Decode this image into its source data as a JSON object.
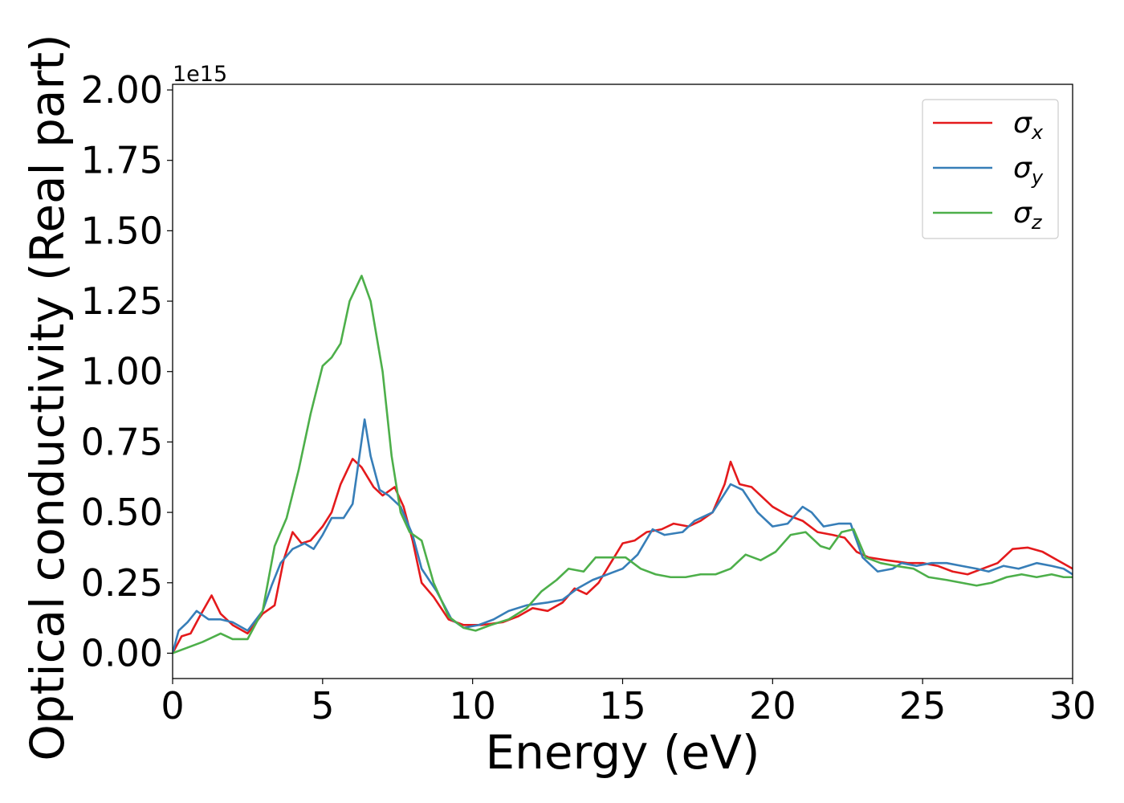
{
  "chart_data": {
    "type": "line",
    "xlabel": "Energy (eV)",
    "ylabel": "Optical conductivity (Real part)",
    "y_offset_label": "1e15",
    "xlim": [
      0,
      30
    ],
    "ylim": [
      -0.09,
      2.02
    ],
    "x_ticks": [
      0,
      5,
      10,
      15,
      20,
      25,
      30
    ],
    "x_tick_labels": [
      "0",
      "5",
      "10",
      "15",
      "20",
      "25",
      "30"
    ],
    "y_ticks": [
      0,
      0.25,
      0.5,
      0.75,
      1.0,
      1.25,
      1.5,
      1.75,
      2.0
    ],
    "y_tick_labels": [
      "0.00",
      "0.25",
      "0.50",
      "0.75",
      "1.00",
      "1.25",
      "1.50",
      "1.75",
      "2.00"
    ],
    "grid": false,
    "legend_position": "top-right",
    "series": [
      {
        "name": "σx",
        "symbol": "σ",
        "subscript": "x",
        "color": "#e41a1c",
        "points": [
          [
            0,
            0
          ],
          [
            0.3,
            0.06
          ],
          [
            0.6,
            0.07
          ],
          [
            0.9,
            0.13
          ],
          [
            1.3,
            0.205
          ],
          [
            1.6,
            0.14
          ],
          [
            2.0,
            0.1
          ],
          [
            2.5,
            0.07
          ],
          [
            3.0,
            0.14
          ],
          [
            3.4,
            0.17
          ],
          [
            3.7,
            0.33
          ],
          [
            4.0,
            0.43
          ],
          [
            4.3,
            0.39
          ],
          [
            4.6,
            0.4
          ],
          [
            5.0,
            0.45
          ],
          [
            5.3,
            0.5
          ],
          [
            5.6,
            0.6
          ],
          [
            6.0,
            0.69
          ],
          [
            6.3,
            0.66
          ],
          [
            6.7,
            0.59
          ],
          [
            7.0,
            0.56
          ],
          [
            7.4,
            0.59
          ],
          [
            7.7,
            0.52
          ],
          [
            8.0,
            0.4
          ],
          [
            8.3,
            0.25
          ],
          [
            8.7,
            0.2
          ],
          [
            9.2,
            0.12
          ],
          [
            9.7,
            0.1
          ],
          [
            10.3,
            0.1
          ],
          [
            11.0,
            0.11
          ],
          [
            11.5,
            0.13
          ],
          [
            12.0,
            0.16
          ],
          [
            12.5,
            0.15
          ],
          [
            13.0,
            0.18
          ],
          [
            13.4,
            0.23
          ],
          [
            13.8,
            0.21
          ],
          [
            14.2,
            0.25
          ],
          [
            14.6,
            0.32
          ],
          [
            15.0,
            0.39
          ],
          [
            15.4,
            0.4
          ],
          [
            15.8,
            0.43
          ],
          [
            16.3,
            0.44
          ],
          [
            16.7,
            0.46
          ],
          [
            17.2,
            0.45
          ],
          [
            17.6,
            0.47
          ],
          [
            18.0,
            0.5
          ],
          [
            18.4,
            0.6
          ],
          [
            18.6,
            0.68
          ],
          [
            18.9,
            0.6
          ],
          [
            19.3,
            0.59
          ],
          [
            19.7,
            0.55
          ],
          [
            20.0,
            0.52
          ],
          [
            20.5,
            0.49
          ],
          [
            21.0,
            0.47
          ],
          [
            21.5,
            0.43
          ],
          [
            22.0,
            0.42
          ],
          [
            22.4,
            0.41
          ],
          [
            22.8,
            0.36
          ],
          [
            23.2,
            0.34
          ],
          [
            23.8,
            0.33
          ],
          [
            24.5,
            0.32
          ],
          [
            25.0,
            0.32
          ],
          [
            25.5,
            0.31
          ],
          [
            26.0,
            0.29
          ],
          [
            26.5,
            0.28
          ],
          [
            27.0,
            0.3
          ],
          [
            27.5,
            0.32
          ],
          [
            28.0,
            0.37
          ],
          [
            28.5,
            0.375
          ],
          [
            29.0,
            0.36
          ],
          [
            29.5,
            0.33
          ],
          [
            30.0,
            0.3
          ]
        ]
      },
      {
        "name": "σy",
        "symbol": "σ",
        "subscript": "y",
        "color": "#377eb8",
        "points": [
          [
            0,
            0
          ],
          [
            0.2,
            0.08
          ],
          [
            0.5,
            0.11
          ],
          [
            0.8,
            0.15
          ],
          [
            1.2,
            0.12
          ],
          [
            1.6,
            0.12
          ],
          [
            2.0,
            0.11
          ],
          [
            2.5,
            0.08
          ],
          [
            3.0,
            0.15
          ],
          [
            3.3,
            0.24
          ],
          [
            3.6,
            0.32
          ],
          [
            4.0,
            0.37
          ],
          [
            4.4,
            0.39
          ],
          [
            4.7,
            0.37
          ],
          [
            5.0,
            0.42
          ],
          [
            5.3,
            0.48
          ],
          [
            5.7,
            0.48
          ],
          [
            6.0,
            0.53
          ],
          [
            6.2,
            0.68
          ],
          [
            6.4,
            0.83
          ],
          [
            6.6,
            0.7
          ],
          [
            6.9,
            0.58
          ],
          [
            7.2,
            0.56
          ],
          [
            7.6,
            0.52
          ],
          [
            8.0,
            0.42
          ],
          [
            8.3,
            0.3
          ],
          [
            8.8,
            0.22
          ],
          [
            9.3,
            0.12
          ],
          [
            9.7,
            0.09
          ],
          [
            10.2,
            0.1
          ],
          [
            10.7,
            0.12
          ],
          [
            11.2,
            0.15
          ],
          [
            11.8,
            0.17
          ],
          [
            12.5,
            0.18
          ],
          [
            13.0,
            0.19
          ],
          [
            13.5,
            0.23
          ],
          [
            14.0,
            0.26
          ],
          [
            14.5,
            0.28
          ],
          [
            15.0,
            0.3
          ],
          [
            15.5,
            0.35
          ],
          [
            16.0,
            0.44
          ],
          [
            16.4,
            0.42
          ],
          [
            17.0,
            0.43
          ],
          [
            17.4,
            0.47
          ],
          [
            18.0,
            0.5
          ],
          [
            18.3,
            0.55
          ],
          [
            18.6,
            0.6
          ],
          [
            19.0,
            0.58
          ],
          [
            19.5,
            0.5
          ],
          [
            20.0,
            0.45
          ],
          [
            20.5,
            0.46
          ],
          [
            21.0,
            0.52
          ],
          [
            21.3,
            0.5
          ],
          [
            21.7,
            0.45
          ],
          [
            22.2,
            0.46
          ],
          [
            22.6,
            0.46
          ],
          [
            23.0,
            0.34
          ],
          [
            23.5,
            0.29
          ],
          [
            24.0,
            0.3
          ],
          [
            24.3,
            0.32
          ],
          [
            24.8,
            0.31
          ],
          [
            25.3,
            0.32
          ],
          [
            25.8,
            0.32
          ],
          [
            26.3,
            0.31
          ],
          [
            26.8,
            0.3
          ],
          [
            27.2,
            0.29
          ],
          [
            27.7,
            0.31
          ],
          [
            28.2,
            0.3
          ],
          [
            28.8,
            0.32
          ],
          [
            29.3,
            0.31
          ],
          [
            29.7,
            0.3
          ],
          [
            30.0,
            0.28
          ]
        ]
      },
      {
        "name": "σz",
        "symbol": "σ",
        "subscript": "z",
        "color": "#4daf4a",
        "points": [
          [
            0,
            0
          ],
          [
            0.5,
            0.02
          ],
          [
            1.0,
            0.04
          ],
          [
            1.6,
            0.07
          ],
          [
            2.0,
            0.05
          ],
          [
            2.5,
            0.05
          ],
          [
            3.0,
            0.15
          ],
          [
            3.4,
            0.38
          ],
          [
            3.8,
            0.48
          ],
          [
            4.2,
            0.65
          ],
          [
            4.6,
            0.85
          ],
          [
            5.0,
            1.02
          ],
          [
            5.3,
            1.05
          ],
          [
            5.6,
            1.1
          ],
          [
            5.9,
            1.25
          ],
          [
            6.3,
            1.34
          ],
          [
            6.6,
            1.25
          ],
          [
            7.0,
            1.0
          ],
          [
            7.3,
            0.7
          ],
          [
            7.6,
            0.5
          ],
          [
            7.9,
            0.43
          ],
          [
            8.3,
            0.4
          ],
          [
            8.7,
            0.25
          ],
          [
            9.2,
            0.13
          ],
          [
            9.7,
            0.09
          ],
          [
            10.1,
            0.08
          ],
          [
            10.6,
            0.1
          ],
          [
            11.2,
            0.12
          ],
          [
            11.8,
            0.16
          ],
          [
            12.3,
            0.22
          ],
          [
            12.8,
            0.26
          ],
          [
            13.2,
            0.3
          ],
          [
            13.7,
            0.29
          ],
          [
            14.1,
            0.34
          ],
          [
            14.6,
            0.34
          ],
          [
            15.1,
            0.34
          ],
          [
            15.6,
            0.3
          ],
          [
            16.1,
            0.28
          ],
          [
            16.6,
            0.27
          ],
          [
            17.1,
            0.27
          ],
          [
            17.6,
            0.28
          ],
          [
            18.1,
            0.28
          ],
          [
            18.6,
            0.3
          ],
          [
            19.1,
            0.35
          ],
          [
            19.6,
            0.33
          ],
          [
            20.1,
            0.36
          ],
          [
            20.6,
            0.42
          ],
          [
            21.1,
            0.43
          ],
          [
            21.6,
            0.38
          ],
          [
            21.9,
            0.37
          ],
          [
            22.3,
            0.43
          ],
          [
            22.7,
            0.44
          ],
          [
            23.1,
            0.34
          ],
          [
            23.6,
            0.32
          ],
          [
            24.1,
            0.31
          ],
          [
            24.7,
            0.3
          ],
          [
            25.2,
            0.27
          ],
          [
            25.8,
            0.26
          ],
          [
            26.3,
            0.25
          ],
          [
            26.8,
            0.24
          ],
          [
            27.3,
            0.25
          ],
          [
            27.8,
            0.27
          ],
          [
            28.3,
            0.28
          ],
          [
            28.8,
            0.27
          ],
          [
            29.3,
            0.28
          ],
          [
            29.7,
            0.27
          ],
          [
            30.0,
            0.27
          ]
        ]
      }
    ]
  }
}
